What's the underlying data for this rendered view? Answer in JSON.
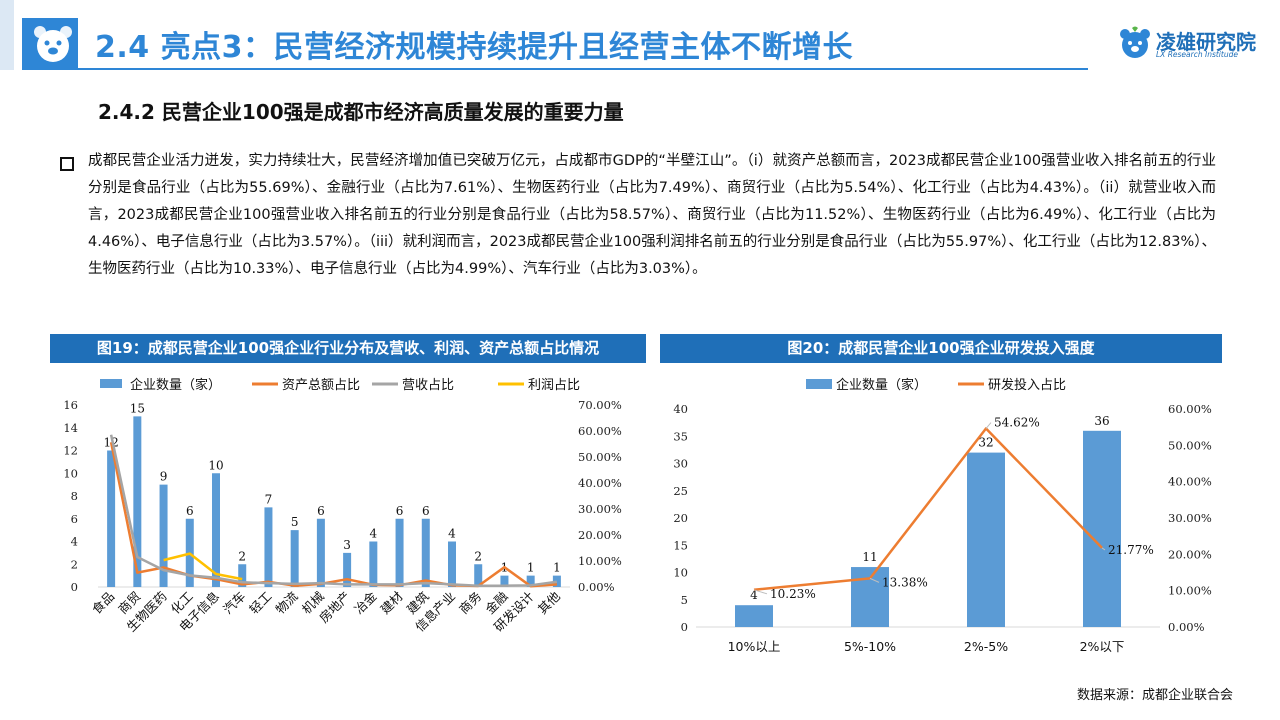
{
  "header": {
    "title": "2.4 亮点3：民营经济规模持续提升且经营主体不断增长",
    "logo_name": "凌雄研究院",
    "logo_sub": "LX Research Institude"
  },
  "section_title": "2.4.2 民营企业100强是成都市经济高质量发展的重要力量",
  "body_text": "成都民营企业活力迸发，实力持续壮大，民营经济增加值已突破万亿元，占成都市GDP的“半壁江山”。（i）就资产总额而言，2023成都民营企业100强营业收入排名前五的行业分别是食品行业（占比为55.69%）、金融行业（占比为7.61%）、生物医药行业（占比为7.49%）、商贸行业（占比为5.54%）、化工行业（占比为4.43%）。（ii）就营业收入而言，2023成都民营企业100强营业收入排名前五的行业分别是食品行业（占比为58.57%）、商贸行业（占比为11.52%）、生物医药行业（占比为6.49%）、化工行业（占比为4.46%）、电子信息行业（占比为3.57%）。（iii）就利润而言，2023成都民营企业100强利润排名前五的行业分别是食品行业（占比为55.97%）、化工行业（占比为12.83%）、生物医药行业（占比为10.33%）、电子信息行业（占比为4.99%）、汽车行业（占比为3.03%）。",
  "panels": {
    "fig19_title": "图19：成都民营企业100强企业行业分布及营收、利润、资产总额占比情况",
    "fig20_title": "图20：成都民营企业100强企业研发投入强度"
  },
  "source": "数据来源：成都企业联合会",
  "colors": {
    "bar": "#5b9bd5",
    "asset": "#ed7d31",
    "revenue": "#a5a5a5",
    "profit": "#ffc000",
    "brand": "#2e86d6"
  },
  "chart_data": [
    {
      "type": "bar",
      "title": "图19：成都民营企业100强企业行业分布及营收、利润、资产总额占比情况",
      "categories": [
        "食品",
        "商贸",
        "生物医药",
        "化工",
        "电子信息",
        "汽车",
        "轻工",
        "物流",
        "机械",
        "房地产",
        "冶金",
        "建材",
        "建筑",
        "信息产业",
        "商务",
        "金融",
        "研发设计",
        "其他"
      ],
      "ylim": [
        0,
        16
      ],
      "yticks": [
        0,
        2,
        4,
        6,
        8,
        10,
        12,
        14,
        16
      ],
      "y2lim": [
        0,
        70
      ],
      "y2ticks": [
        "0.00%",
        "10.00%",
        "20.00%",
        "30.00%",
        "40.00%",
        "50.00%",
        "60.00%",
        "70.00%"
      ],
      "legend_position": "top",
      "series": [
        {
          "name": "企业数量（家）",
          "kind": "bar",
          "axis": "left",
          "values": [
            12,
            15,
            9,
            6,
            10,
            2,
            7,
            5,
            6,
            3,
            4,
            6,
            6,
            4,
            2,
            1,
            1,
            1
          ]
        },
        {
          "name": "资产总额占比",
          "kind": "line",
          "axis": "right",
          "values": [
            55.69,
            5.54,
            7.49,
            4.43,
            3.0,
            1.0,
            2.0,
            0.5,
            1.2,
            3.0,
            0.8,
            0.7,
            2.5,
            0.7,
            0.4,
            7.61,
            0.3,
            1.0
          ]
        },
        {
          "name": "营收占比",
          "kind": "line",
          "axis": "right",
          "values": [
            58.57,
            11.52,
            6.49,
            4.46,
            3.57,
            1.8,
            1.5,
            1.2,
            1.5,
            1.0,
            1.0,
            1.0,
            1.5,
            1.0,
            0.5,
            0.5,
            0.6,
            2.0
          ]
        },
        {
          "name": "利润占比",
          "kind": "line",
          "axis": "right",
          "values": [
            55.97,
            null,
            10.33,
            12.83,
            4.99,
            3.03,
            null,
            null,
            null,
            null,
            null,
            null,
            null,
            null,
            null,
            null,
            null,
            null
          ]
        }
      ]
    },
    {
      "type": "bar",
      "title": "图20：成都民营企业100强企业研发投入强度",
      "categories": [
        "10%以上",
        "5%-10%",
        "2%-5%",
        "2%以下"
      ],
      "ylim": [
        0,
        40
      ],
      "yticks": [
        0,
        5,
        10,
        15,
        20,
        25,
        30,
        35,
        40
      ],
      "y2lim": [
        0,
        60
      ],
      "y2ticks": [
        "0.00%",
        "10.00%",
        "20.00%",
        "30.00%",
        "40.00%",
        "50.00%",
        "60.00%"
      ],
      "legend_position": "top",
      "series": [
        {
          "name": "企业数量（家）",
          "kind": "bar",
          "axis": "left",
          "values": [
            4,
            11,
            32,
            36
          ]
        },
        {
          "name": "研发投入占比",
          "kind": "line",
          "axis": "right",
          "values": [
            10.23,
            13.38,
            54.62,
            21.77
          ],
          "labels": [
            "10.23%",
            "13.38%",
            "54.62%",
            "21.77%"
          ]
        }
      ]
    }
  ]
}
